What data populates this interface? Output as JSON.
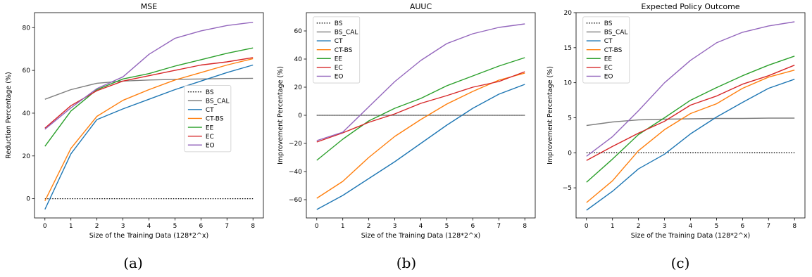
{
  "colors": {
    "BS": "#000000",
    "BS_CAL": "#7f7f7f",
    "CT": "#1f77b4",
    "CT-BS": "#ff7f0e",
    "EE": "#2ca02c",
    "EC": "#d62728",
    "EO": "#9467bd"
  },
  "chart_data": [
    {
      "type": "line",
      "title": "MSE",
      "xlabel": "Size of the Training Data (128*2^x)",
      "ylabel": "Reduction Percentage (%)",
      "x": [
        0,
        1,
        2,
        3,
        4,
        5,
        6,
        7,
        8
      ],
      "xticks": [
        "0",
        "1",
        "2",
        "3",
        "4",
        "5",
        "6",
        "7",
        "8"
      ],
      "xlim": [
        -0.4,
        8.4
      ],
      "ylim": [
        -9,
        87
      ],
      "yticks": [
        0,
        20,
        40,
        60,
        80
      ],
      "ytick_labels": [
        "0",
        "20",
        "40",
        "60",
        "80"
      ],
      "grid": false,
      "legend": "center-right",
      "legend_pos": {
        "left": 0.655,
        "top": 0.355
      },
      "series": [
        {
          "name": "BS",
          "style": "dotted",
          "values": [
            0,
            0,
            0,
            0,
            0,
            0,
            0,
            0,
            0
          ]
        },
        {
          "name": "BS_CAL",
          "values": [
            46.5,
            51,
            54,
            55,
            55.5,
            55.8,
            56,
            56.2,
            56.3
          ]
        },
        {
          "name": "CT",
          "values": [
            -5,
            21,
            37,
            42,
            46.5,
            51,
            55,
            59,
            62.5
          ]
        },
        {
          "name": "CT-BS",
          "values": [
            -1,
            23.5,
            38.5,
            46,
            51,
            55.5,
            59,
            62.5,
            65.5
          ]
        },
        {
          "name": "EE",
          "values": [
            24.5,
            41,
            51,
            56,
            58.5,
            62,
            65,
            68,
            70.5
          ]
        },
        {
          "name": "EC",
          "values": [
            33,
            43.5,
            50.5,
            55,
            57.5,
            60,
            62.5,
            64,
            66
          ]
        },
        {
          "name": "EO",
          "values": [
            32.5,
            42.5,
            51.5,
            57,
            67.5,
            75,
            78.5,
            81,
            82.5
          ]
        }
      ]
    },
    {
      "type": "line",
      "title": "AUUC",
      "xlabel": "Size of the Training Data (128*2^x)",
      "ylabel": "Improvement Percentage (%)",
      "x": [
        0,
        1,
        2,
        3,
        4,
        5,
        6,
        7,
        8
      ],
      "xticks": [
        "0",
        "1",
        "2",
        "3",
        "4",
        "5",
        "6",
        "7",
        "8"
      ],
      "xlim": [
        -0.4,
        8.4
      ],
      "ylim": [
        -73,
        73
      ],
      "yticks": [
        -60,
        -40,
        -20,
        0,
        20,
        40,
        60
      ],
      "ytick_labels": [
        "−60",
        "−40",
        "−20",
        "0",
        "20",
        "40",
        "60"
      ],
      "grid": false,
      "legend": "top-left",
      "legend_pos": {
        "left": 0.03,
        "top": 0.02
      },
      "series": [
        {
          "name": "BS",
          "style": "dotted",
          "values": [
            0,
            0,
            0,
            0,
            0,
            0,
            0,
            0,
            0
          ]
        },
        {
          "name": "BS_CAL",
          "values": [
            0,
            0,
            0,
            0,
            0,
            0,
            0,
            0,
            0
          ]
        },
        {
          "name": "CT",
          "values": [
            -67,
            -57,
            -45,
            -33,
            -20,
            -7,
            5,
            15,
            22
          ]
        },
        {
          "name": "CT-BS",
          "values": [
            -59,
            -47,
            -30,
            -15,
            -3,
            8,
            17,
            25,
            30
          ]
        },
        {
          "name": "EE",
          "values": [
            -32,
            -17,
            -4,
            5,
            12,
            21,
            28,
            35,
            41
          ]
        },
        {
          "name": "EC",
          "values": [
            -19,
            -12.5,
            -5,
            1,
            8.5,
            14,
            20,
            24,
            31
          ]
        },
        {
          "name": "EO",
          "values": [
            -18,
            -12,
            6,
            24,
            39,
            51,
            58,
            62.5,
            65
          ]
        }
      ]
    },
    {
      "type": "line",
      "title": "Expected Policy Outcome",
      "xlabel": "Size of the Training Data (128*2^x)",
      "ylabel": "Improvement Percentage (%)",
      "x": [
        0,
        1,
        2,
        3,
        4,
        5,
        6,
        7,
        8
      ],
      "xticks": [
        "0",
        "1",
        "2",
        "3",
        "4",
        "5",
        "6",
        "7",
        "8"
      ],
      "xlim": [
        -0.4,
        8.4
      ],
      "ylim": [
        -9.3,
        20
      ],
      "yticks": [
        -5,
        0,
        5,
        10,
        15,
        20
      ],
      "ytick_labels": [
        "−5",
        "0",
        "5",
        "10",
        "15",
        "20"
      ],
      "grid": false,
      "legend": "top-left",
      "legend_pos": {
        "left": 0.03,
        "top": 0.02
      },
      "series": [
        {
          "name": "BS",
          "style": "dotted",
          "values": [
            0,
            0,
            0,
            0,
            0,
            0,
            0,
            0,
            0
          ]
        },
        {
          "name": "BS_CAL",
          "values": [
            3.9,
            4.4,
            4.7,
            4.8,
            4.85,
            4.9,
            4.9,
            4.95,
            4.95
          ]
        },
        {
          "name": "CT",
          "values": [
            -8.2,
            -5.5,
            -2.3,
            -0.2,
            2.7,
            5.1,
            7.2,
            9.2,
            10.5
          ]
        },
        {
          "name": "CT-BS",
          "values": [
            -7.1,
            -4,
            0.3,
            3.3,
            5.6,
            7,
            9.2,
            10.8,
            11.8
          ]
        },
        {
          "name": "EE",
          "values": [
            -4.2,
            -0.9,
            2.6,
            5,
            7.5,
            9.3,
            11,
            12.5,
            13.8
          ]
        },
        {
          "name": "EC",
          "values": [
            -1.1,
            0.9,
            2.8,
            4.5,
            6.8,
            8.1,
            9.8,
            11,
            12.5
          ]
        },
        {
          "name": "EO",
          "values": [
            -0.5,
            2.3,
            6,
            10,
            13.2,
            15.7,
            17.2,
            18.1,
            18.7
          ]
        }
      ]
    }
  ],
  "captions": [
    "(a)",
    "(b)",
    "(c)"
  ]
}
